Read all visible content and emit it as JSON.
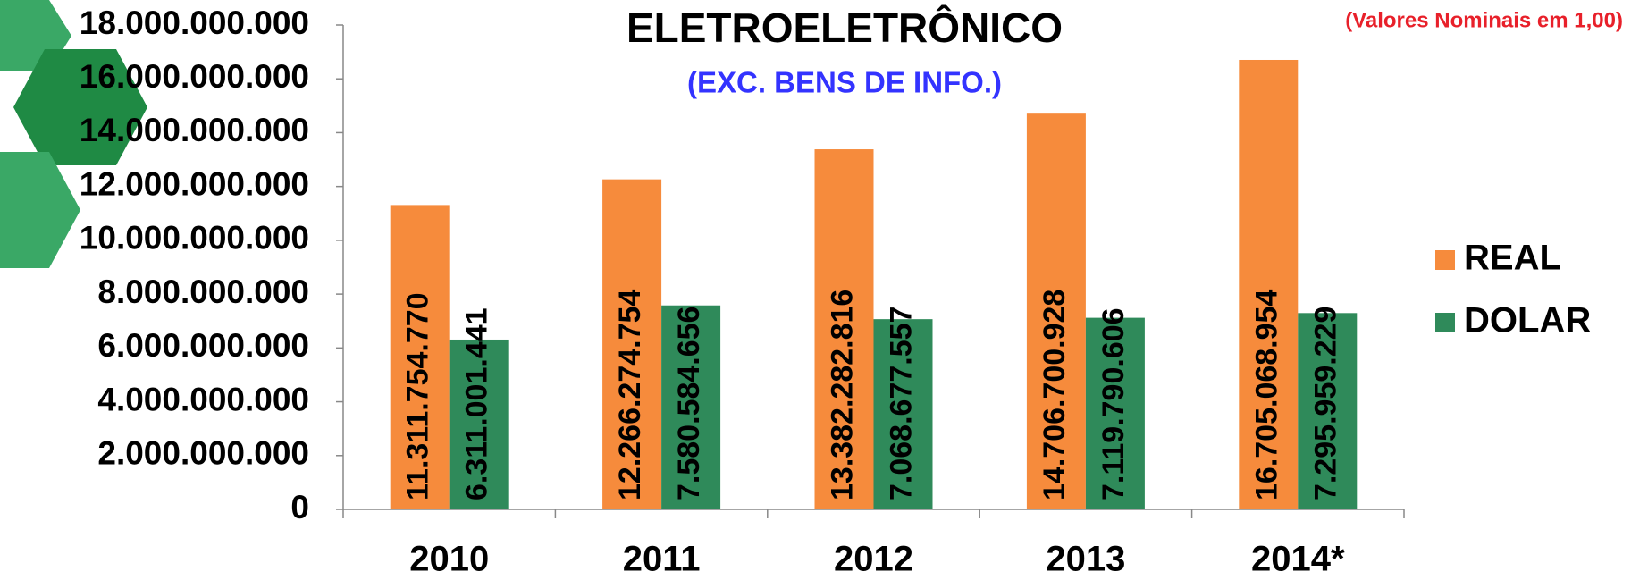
{
  "chart_data": {
    "type": "bar",
    "title": "ELETROELETRÔNICO",
    "subtitle": "(EXC. BENS DE INFO.)",
    "note": "(Valores Nominais em 1,00)",
    "categories": [
      "2010",
      "2011",
      "2012",
      "2013",
      "2014*"
    ],
    "series": [
      {
        "name": "REAL",
        "color": "#f68b3c",
        "values": [
          11311754770,
          12266274754,
          13382282816,
          14706700928,
          16705068954
        ],
        "value_labels": [
          "11.311.754.770",
          "12.266.274.754",
          "13.382.282.816",
          "14.706.700.928",
          "16.705.068.954"
        ]
      },
      {
        "name": "DOLAR",
        "color": "#2f8a5a",
        "values": [
          6311001441,
          7580584656,
          7068677557,
          7119790606,
          7295959229
        ],
        "value_labels": [
          "6.311.001.441",
          "7.580.584.656",
          "7.068.677.557",
          "7.119.790.606",
          "7.295.959.229"
        ]
      }
    ],
    "ylim": [
      0,
      18000000000
    ],
    "yticks": [
      0,
      {
        "value": 2000000000,
        "label": "2.000.000.000"
      },
      {
        "value": 4000000000,
        "label": "4.000.000.000"
      },
      {
        "value": 6000000000,
        "label": "6.000.000.000"
      },
      {
        "value": 8000000000,
        "label": "8.000.000.000"
      },
      {
        "value": 10000000000,
        "label": "10.000.000.000"
      },
      {
        "value": 12000000000,
        "label": "12.000.000.000"
      },
      {
        "value": 14000000000,
        "label": "14.000.000.000"
      },
      {
        "value": 16000000000,
        "label": "16.000.000.000"
      },
      {
        "value": 18000000000,
        "label": "18.000.000.000"
      }
    ],
    "legend": "right"
  }
}
